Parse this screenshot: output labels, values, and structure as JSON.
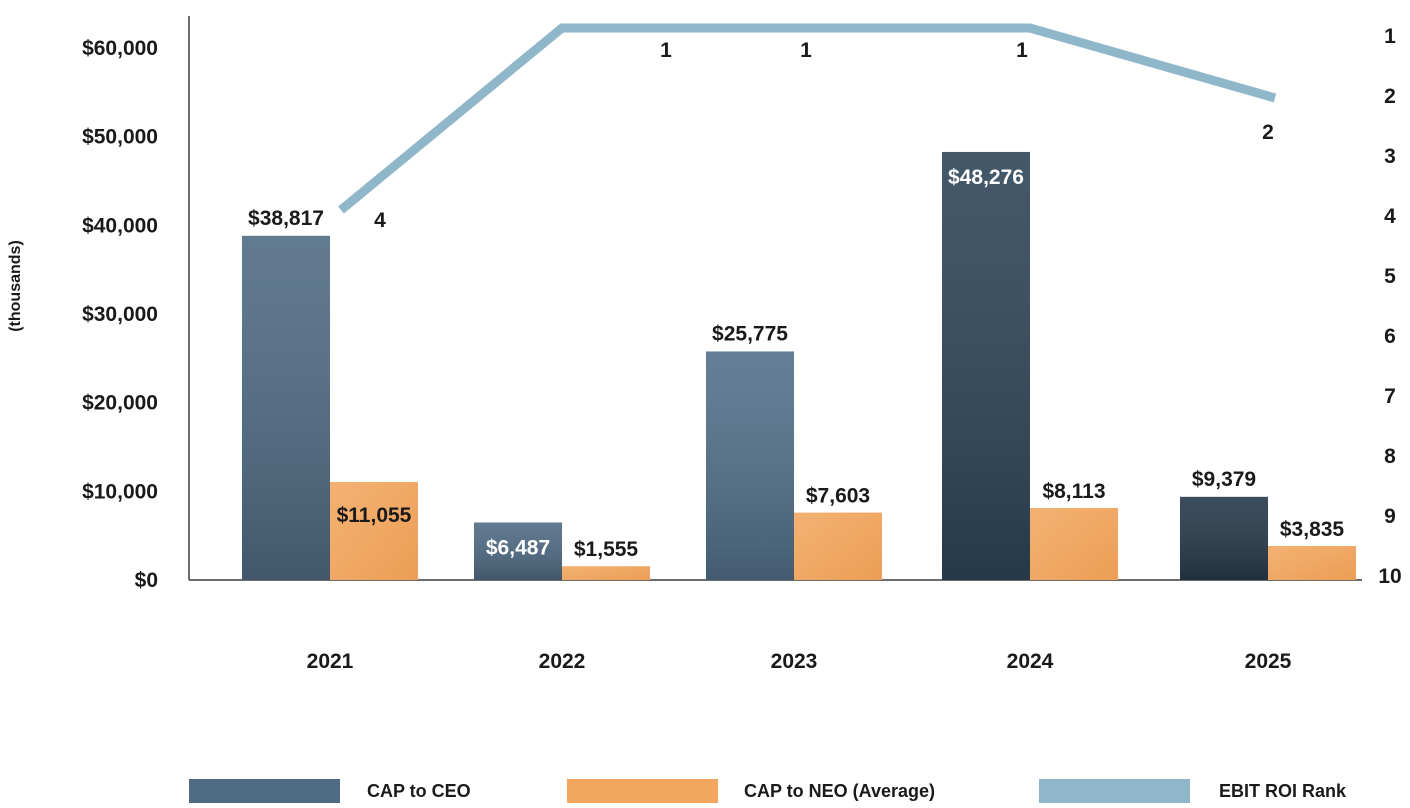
{
  "chart_data": {
    "type": "bar",
    "categories": [
      "2021",
      "2022",
      "2023",
      "2024",
      "2025"
    ],
    "series": [
      {
        "name": "CAP to CEO",
        "values": [
          38817,
          6487,
          25775,
          48276,
          9379
        ],
        "labels": [
          "$38,817",
          "$6,487",
          "$25,775",
          "$48,276",
          "$9,379"
        ],
        "colors": [
          "#4f6b83",
          "#4f6b83",
          "#52708a",
          "#2e4558",
          "#263a4b"
        ],
        "axis": "left"
      },
      {
        "name": "CAP to NEO (Average)",
        "values": [
          11055,
          1555,
          7603,
          8113,
          3835
        ],
        "labels": [
          "$11,055",
          "$1,555",
          "$7,603",
          "$8,113",
          "$3,835"
        ],
        "color": "#f2a65e",
        "axis": "left"
      },
      {
        "name": "EBIT ROI Rank",
        "type": "line",
        "values": [
          4,
          1,
          1,
          1,
          2
        ],
        "labels": [
          "4",
          "1",
          "1",
          "1",
          "2"
        ],
        "color": "#8fb6c9",
        "axis": "right"
      }
    ],
    "ylabel": "(thousands)",
    "ylim": [
      0,
      60000
    ],
    "yticks": [
      "$0",
      "$10,000",
      "$20,000",
      "$30,000",
      "$40,000",
      "$50,000",
      "$60,000"
    ],
    "y2lim": [
      1,
      10
    ],
    "y2ticks": [
      "1",
      "2",
      "3",
      "4",
      "5",
      "6",
      "7",
      "8",
      "9",
      "10"
    ],
    "legend": [
      {
        "label": "CAP to CEO",
        "color": "#4f6b83"
      },
      {
        "label": "CAP to NEO (Average)",
        "color": "#f2a65e"
      },
      {
        "label": "EBIT ROI Rank",
        "color": "#8fb6c9"
      }
    ],
    "legend_position": "bottom",
    "grid": false
  }
}
